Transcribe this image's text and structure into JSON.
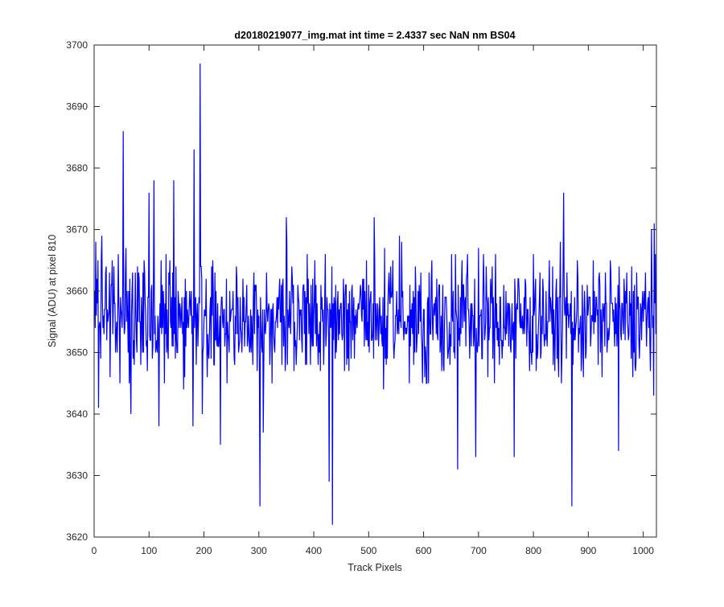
{
  "chart_data": {
    "type": "line",
    "title": "d20180219077_img.mat int time = 2.4337 sec  NaN nm BS04",
    "xlabel": "Track Pixels",
    "ylabel": "Signal (ADU) at pixel 810",
    "xlim": [
      0,
      1024
    ],
    "ylim": [
      3620,
      3700
    ],
    "xticks": [
      0,
      100,
      200,
      300,
      400,
      500,
      600,
      700,
      800,
      900,
      1000
    ],
    "yticks": [
      3620,
      3630,
      3640,
      3650,
      3660,
      3670,
      3680,
      3690,
      3700
    ],
    "grid": false,
    "legend": "none",
    "series": [
      {
        "color": "#0000ff",
        "baseline_mean": 3655.5,
        "noise_spread": 5,
        "x_start": 1,
        "x_end": 1024,
        "points": [
          {
            "x": 1,
            "y": 3660
          },
          {
            "x": 2,
            "y": 3654
          },
          {
            "x": 3,
            "y": 3668
          },
          {
            "x": 4,
            "y": 3656
          },
          {
            "x": 5,
            "y": 3662
          },
          {
            "x": 6,
            "y": 3658
          },
          {
            "x": 7,
            "y": 3665
          },
          {
            "x": 8,
            "y": 3641
          },
          {
            "x": 14,
            "y": 3669
          },
          {
            "x": 53,
            "y": 3686
          },
          {
            "x": 67,
            "y": 3640
          },
          {
            "x": 100,
            "y": 3676
          },
          {
            "x": 109,
            "y": 3678
          },
          {
            "x": 118,
            "y": 3638
          },
          {
            "x": 145,
            "y": 3678
          },
          {
            "x": 180,
            "y": 3638
          },
          {
            "x": 182,
            "y": 3683
          },
          {
            "x": 193,
            "y": 3697
          },
          {
            "x": 197,
            "y": 3640
          },
          {
            "x": 230,
            "y": 3635
          },
          {
            "x": 302,
            "y": 3625
          },
          {
            "x": 308,
            "y": 3637
          },
          {
            "x": 350,
            "y": 3672
          },
          {
            "x": 428,
            "y": 3629
          },
          {
            "x": 434,
            "y": 3622
          },
          {
            "x": 510,
            "y": 3672
          },
          {
            "x": 560,
            "y": 3668
          },
          {
            "x": 662,
            "y": 3631
          },
          {
            "x": 680,
            "y": 3666
          },
          {
            "x": 695,
            "y": 3633
          },
          {
            "x": 765,
            "y": 3633
          },
          {
            "x": 800,
            "y": 3666
          },
          {
            "x": 855,
            "y": 3676
          },
          {
            "x": 870,
            "y": 3625
          },
          {
            "x": 940,
            "y": 3665
          },
          {
            "x": 955,
            "y": 3634
          },
          {
            "x": 1015,
            "y": 3670
          },
          {
            "x": 1020,
            "y": 3671
          },
          {
            "x": 1024,
            "y": 3655
          }
        ]
      }
    ]
  }
}
